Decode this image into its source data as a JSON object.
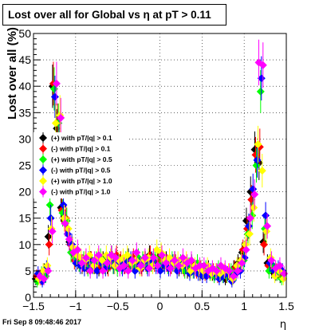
{
  "title": "Lost over all for Global vs   η at pT > 0.11",
  "footer": "Fri Sep  8 09:48:46 2017",
  "chart_data": {
    "type": "scatter",
    "title": "Lost over all for Global vs   η at pT > 0.11",
    "xlabel": "η",
    "ylabel": "Lost over all (%)",
    "xlim": [
      -1.5,
      1.5
    ],
    "ylim": [
      0,
      50
    ],
    "x_ticks": [
      "−1.5",
      "−1",
      "−0.5",
      "0",
      "0.5",
      "1",
      "1.5"
    ],
    "y_ticks": [
      "0",
      "5",
      "10",
      "15",
      "20",
      "25",
      "30",
      "35",
      "40",
      "45",
      "50"
    ],
    "grid": true,
    "legend_position": "left-middle",
    "x": [
      -1.45,
      -1.4,
      -1.35,
      -1.3,
      -1.25,
      -1.2,
      -1.15,
      -1.1,
      -1.05,
      -1.0,
      -0.95,
      -0.9,
      -0.85,
      -0.8,
      -0.75,
      -0.7,
      -0.65,
      -0.6,
      -0.55,
      -0.5,
      -0.45,
      -0.4,
      -0.35,
      -0.3,
      -0.25,
      -0.2,
      -0.15,
      -0.1,
      -0.05,
      0.0,
      0.05,
      0.1,
      0.15,
      0.2,
      0.25,
      0.3,
      0.35,
      0.4,
      0.45,
      0.5,
      0.55,
      0.6,
      0.65,
      0.7,
      0.75,
      0.8,
      0.85,
      0.9,
      0.95,
      1.0,
      1.05,
      1.1,
      1.15,
      1.2,
      1.25,
      1.3,
      1.35,
      1.4,
      1.45
    ],
    "series": [
      {
        "name": "(+) with pT/|q| > 0.1",
        "color": "#000000",
        "values": [
          3.5,
          4,
          5,
          11.5,
          40,
          32,
          17,
          14,
          10.5,
          8,
          7,
          6,
          6.5,
          7,
          6,
          5.5,
          7,
          6,
          8,
          7,
          6.5,
          6,
          7.5,
          7,
          6.5,
          6,
          7,
          8,
          7,
          7.5,
          6.5,
          7,
          6,
          7,
          5.5,
          6,
          5,
          6.5,
          5.5,
          4.5,
          5,
          5.5,
          4.5,
          5,
          4.5,
          3.5,
          4.5,
          5.5,
          6.5,
          8.5,
          14.5,
          20,
          28,
          25.5,
          10.5,
          6.5,
          5,
          4.5,
          4
        ]
      },
      {
        "name": "(-) with pT/|q| > 0.1",
        "color": "#ff0000",
        "values": [
          4,
          3.5,
          4.5,
          10,
          40.5,
          33,
          16.5,
          15,
          10,
          7,
          7.5,
          6.5,
          6,
          7,
          6.5,
          6,
          6.5,
          5.5,
          7,
          8,
          7,
          6,
          6.5,
          7.5,
          7,
          5.5,
          6.5,
          8,
          6.5,
          7,
          7,
          6.5,
          6,
          6.5,
          6,
          5.5,
          5.5,
          6,
          5,
          5.5,
          4.5,
          5,
          5,
          4,
          5,
          4,
          4,
          5.5,
          6,
          9,
          13,
          18.5,
          27,
          28.5,
          10,
          6,
          5.5,
          5,
          4.5
        ]
      },
      {
        "name": "(+) with pT/|q| > 0.5",
        "color": "#00ff00",
        "values": [
          3,
          4.5,
          4,
          17.5,
          39.5,
          33,
          16,
          14.5,
          8.5,
          7.5,
          6.5,
          7,
          5.5,
          6.5,
          7,
          7.5,
          6,
          6.5,
          6,
          5.5,
          6,
          7,
          6.5,
          6,
          7.5,
          7,
          6,
          6.5,
          7.5,
          6,
          6.5,
          6,
          7,
          6,
          6.5,
          5,
          6,
          5,
          6.5,
          5,
          5.5,
          4.5,
          4,
          5.5,
          4,
          4,
          5,
          4.5,
          6,
          7,
          12,
          15.5,
          25,
          39,
          13,
          5,
          6,
          4.5,
          3.5
        ]
      },
      {
        "name": "(-) with pT/|q| > 0.5",
        "color": "#0000ff",
        "values": [
          4.5,
          3,
          5.5,
          15,
          38,
          30,
          17.5,
          12,
          10,
          6.5,
          6,
          5.5,
          7,
          6,
          5,
          6.5,
          5.5,
          7,
          6,
          6.5,
          5.5,
          6.5,
          7,
          5,
          6,
          6.5,
          5.5,
          7,
          6,
          5,
          6,
          5.5,
          6.5,
          5,
          6,
          6,
          4.5,
          5,
          4.5,
          4,
          4,
          5,
          4.5,
          3.5,
          4,
          4.5,
          3,
          4.5,
          5,
          7.5,
          13.5,
          20.5,
          26,
          41.5,
          15.5,
          6.5,
          5,
          5.5,
          5
        ]
      },
      {
        "name": "(+) with pT/|q| > 1.0",
        "color": "#ffff00",
        "values": [
          3.5,
          5,
          6,
          13,
          33,
          34.5,
          15,
          13,
          9.5,
          8,
          7.5,
          7,
          8,
          6,
          7.5,
          7,
          8,
          7.5,
          6,
          7,
          7.5,
          8,
          6.5,
          7,
          5.5,
          7,
          7.5,
          6,
          9,
          8.5,
          7,
          7.5,
          6.5,
          7,
          6,
          7,
          5,
          6,
          5.5,
          5,
          6,
          4.5,
          5,
          4.5,
          5,
          5,
          3.5,
          6,
          7,
          10,
          12,
          17,
          29,
          24,
          12.5,
          7.5,
          4,
          5,
          3.5
        ]
      },
      {
        "name": "(-) with pT/|q| > 1.0",
        "color": "#ff00ff",
        "values": [
          4,
          3.5,
          5,
          12.5,
          40.5,
          34,
          14,
          11,
          8.5,
          9,
          6.5,
          7.5,
          5,
          7,
          8,
          5,
          6.5,
          8,
          7.5,
          5.5,
          6,
          5,
          7,
          8.5,
          6,
          7.5,
          5.5,
          7.5,
          6,
          8,
          6.5,
          5.5,
          7,
          6,
          7.5,
          6.5,
          7,
          5.5,
          6,
          6,
          5,
          5.5,
          5,
          6,
          5.5,
          5,
          4,
          5,
          6.5,
          9,
          15,
          19.5,
          44.5,
          44,
          13.5,
          7,
          5.5,
          6,
          4.5
        ]
      }
    ]
  }
}
